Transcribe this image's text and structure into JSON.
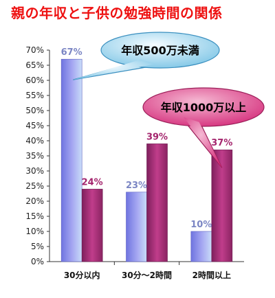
{
  "chart_data": {
    "type": "bar",
    "title": "親の年収と子供の勉強時間の関係",
    "xlabel": "",
    "ylabel": "",
    "categories": [
      "30分以内",
      "30分～2時間",
      "2時間以上"
    ],
    "series": [
      {
        "name": "年収500万未満",
        "values": [
          67,
          23,
          10
        ],
        "labels": [
          "67%",
          "23%",
          "10%"
        ],
        "color": "#8f8fe8"
      },
      {
        "name": "年収1000万以上",
        "values": [
          24,
          39,
          37
        ],
        "labels": [
          "24%",
          "39%",
          "37%"
        ],
        "color": "#b0307f"
      }
    ],
    "ylim": [
      0,
      70
    ],
    "yticks": [
      0,
      5,
      10,
      15,
      20,
      25,
      30,
      35,
      40,
      45,
      50,
      55,
      60,
      65,
      70
    ],
    "ytick_labels": [
      "0%",
      "5%",
      "10%",
      "15%",
      "20%",
      "25%",
      "30%",
      "35%",
      "40%",
      "45%",
      "50%",
      "55%",
      "60%",
      "65%",
      "70%"
    ],
    "grid": false,
    "legend": "callouts",
    "colors": {
      "title": "#ee1111",
      "label_low": "#7b86c4",
      "label_high": "#a4256d",
      "callout_low": "#9fd6ee",
      "callout_high": "#e14a8d"
    }
  }
}
